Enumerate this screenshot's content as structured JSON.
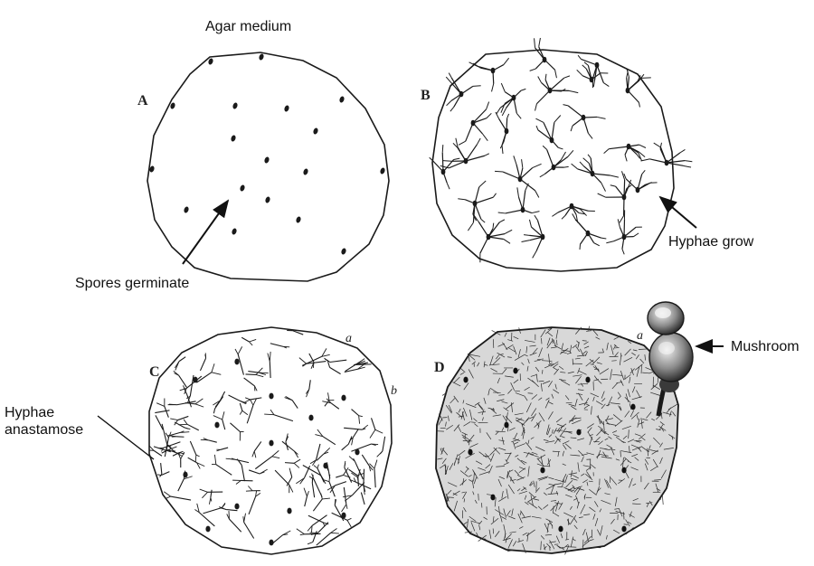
{
  "labels": {
    "agar_medium": "Agar medium",
    "spores_germinate": "Spores germinate",
    "hyphae_grow": "Hyphae grow",
    "hyphae_anastamose": [
      "Hyphae",
      "anastamose"
    ],
    "mushroom": "Mushroom"
  },
  "panels": {
    "a": "A",
    "b": "B",
    "c": "C",
    "d": "D"
  },
  "annotations": {
    "c_a": "a",
    "c_b": "b",
    "d_a": "a"
  },
  "colors": {
    "ink": "#1a1a1a",
    "dish_fill": "#ffffff",
    "dense_fill": "#d8d8d8",
    "mushroom_dark": "#2a2a2a",
    "mushroom_light": "#dcdcdc"
  },
  "icons": {
    "arrow": "arrow-icon",
    "mushroom": "mushroom-icon"
  }
}
